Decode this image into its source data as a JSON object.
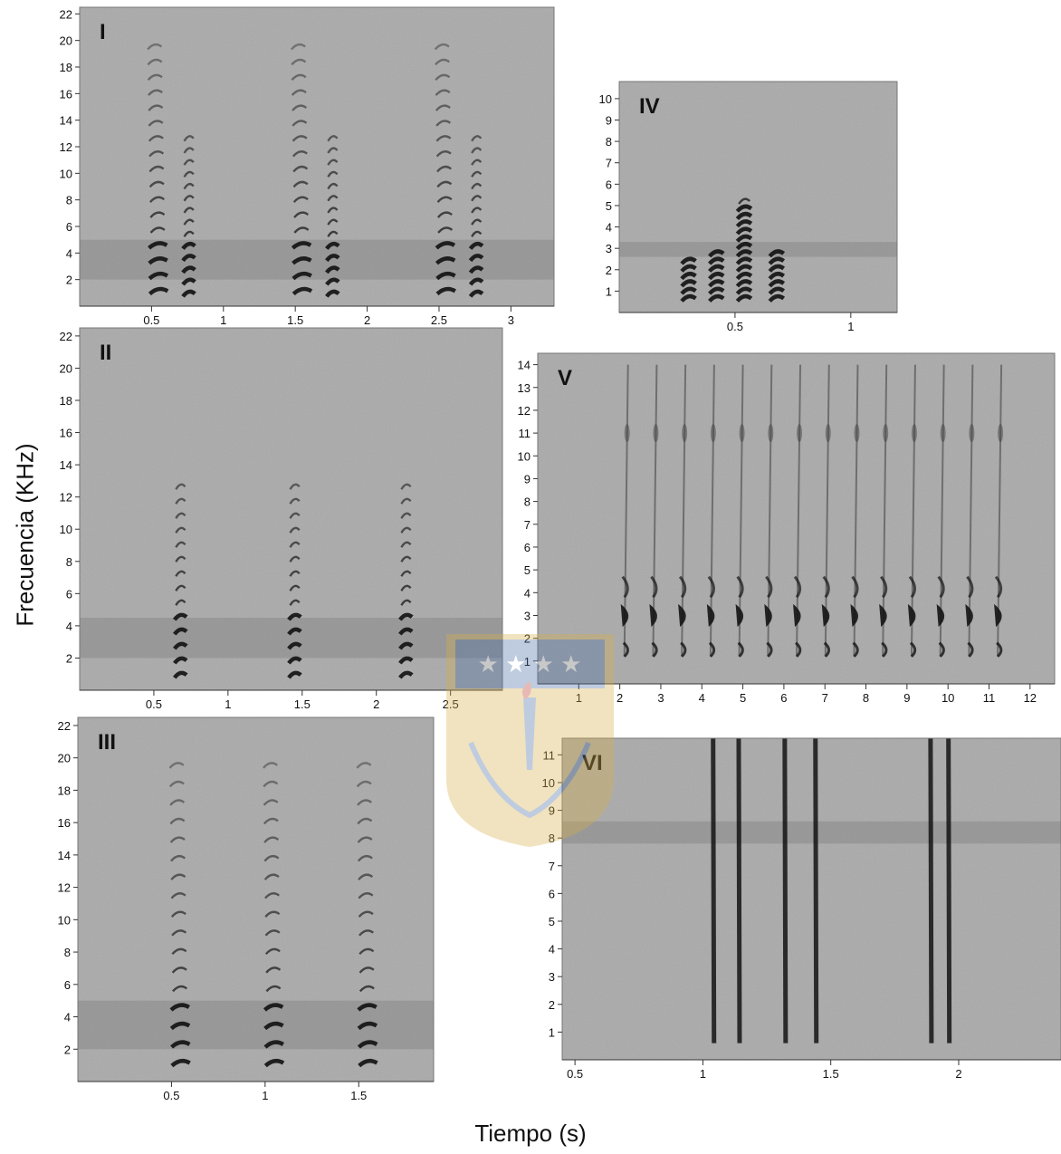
{
  "figure": {
    "ylabel": "Frecuencia (KHz)",
    "xlabel": "Tiempo (s)"
  },
  "chart_data": [
    {
      "type": "spectrogram",
      "panel_label": "I",
      "ylabel": "Frecuencia (KHz)",
      "xlabel": "Tiempo (s)",
      "yticks": [
        "2",
        "4",
        "6",
        "8",
        "10",
        "12",
        "14",
        "16",
        "18",
        "20",
        "22"
      ],
      "xticks": [
        "0.5",
        "1",
        "1.5",
        "2",
        "2.5",
        "3"
      ],
      "ylim": [
        0,
        22.5
      ],
      "xlim": [
        0,
        3.3
      ],
      "bands": [
        {
          "name": "noise_band",
          "y_range": [
            2.0,
            5.0
          ]
        }
      ],
      "calls": [
        {
          "x": 0.55,
          "shape": "descending_chevrons",
          "f_min": 1.2,
          "f_max": 20
        },
        {
          "x": 0.76,
          "shape": "descending_chevrons",
          "f_min": 1.0,
          "f_max": 13.5
        },
        {
          "x": 1.55,
          "shape": "descending_chevrons",
          "f_min": 1.2,
          "f_max": 20
        },
        {
          "x": 1.76,
          "shape": "descending_chevrons",
          "f_min": 1.0,
          "f_max": 13.5
        },
        {
          "x": 2.55,
          "shape": "descending_chevrons",
          "f_min": 1.2,
          "f_max": 20
        },
        {
          "x": 2.76,
          "shape": "descending_chevrons",
          "f_min": 1.0,
          "f_max": 13.5
        }
      ]
    },
    {
      "type": "spectrogram",
      "panel_label": "II",
      "yticks": [
        "2",
        "4",
        "6",
        "8",
        "10",
        "12",
        "14",
        "16",
        "18",
        "20",
        "22"
      ],
      "xticks": [
        "0.5",
        "1",
        "1.5",
        "2",
        "2.5"
      ],
      "ylim": [
        0,
        22.5
      ],
      "xlim": [
        0,
        2.85
      ],
      "bands": [
        {
          "name": "noise_band",
          "y_range": [
            2.0,
            4.5
          ]
        }
      ],
      "calls": [
        {
          "x": 0.68,
          "shape": "descending_chevrons",
          "f_min": 1.0,
          "f_max": 13.5
        },
        {
          "x": 1.45,
          "shape": "descending_chevrons",
          "f_min": 1.0,
          "f_max": 13.5
        },
        {
          "x": 2.2,
          "shape": "descending_chevrons",
          "f_min": 1.0,
          "f_max": 13.5
        }
      ]
    },
    {
      "type": "spectrogram",
      "panel_label": "III",
      "yticks": [
        "2",
        "4",
        "6",
        "8",
        "10",
        "12",
        "14",
        "16",
        "18",
        "20",
        "22"
      ],
      "xticks": [
        "0.5",
        "1",
        "1.5"
      ],
      "ylim": [
        0,
        22.5
      ],
      "xlim": [
        0,
        1.9
      ],
      "bands": [
        {
          "name": "noise_band",
          "y_range": [
            2.0,
            5.0
          ]
        }
      ],
      "calls": [
        {
          "x": 0.55,
          "shape": "descending_chevrons",
          "f_min": 1.2,
          "f_max": 20
        },
        {
          "x": 1.05,
          "shape": "descending_chevrons",
          "f_min": 1.2,
          "f_max": 20
        },
        {
          "x": 1.55,
          "shape": "descending_chevrons",
          "f_min": 1.2,
          "f_max": 20
        }
      ]
    },
    {
      "type": "spectrogram",
      "panel_label": "IV",
      "yticks": [
        "1",
        "2",
        "3",
        "4",
        "5",
        "6",
        "7",
        "8",
        "9",
        "10"
      ],
      "xticks": [
        "0.5",
        "1"
      ],
      "ylim": [
        0,
        10.8
      ],
      "xlim": [
        0,
        1.2
      ],
      "bands": [
        {
          "name": "noise_band",
          "y_range": [
            2.6,
            3.3
          ]
        }
      ],
      "calls": [
        {
          "x": 0.3,
          "shape": "chevron_stack",
          "f_min": 0.7,
          "f_max": 2.6
        },
        {
          "x": 0.42,
          "shape": "chevron_stack",
          "f_min": 0.7,
          "f_max": 3.0
        },
        {
          "x": 0.54,
          "shape": "chevron_stack",
          "f_min": 0.7,
          "f_max": 5.5
        },
        {
          "x": 0.68,
          "shape": "chevron_stack",
          "f_min": 0.7,
          "f_max": 3.0
        }
      ]
    },
    {
      "type": "spectrogram",
      "panel_label": "V",
      "yticks": [
        "1",
        "2",
        "3",
        "4",
        "5",
        "6",
        "7",
        "8",
        "9",
        "10",
        "11",
        "12",
        "13",
        "14"
      ],
      "xticks": [
        "1",
        "2",
        "3",
        "4",
        "5",
        "6",
        "7",
        "8",
        "9",
        "10",
        "11",
        "12"
      ],
      "ylim": [
        0,
        14.5
      ],
      "xlim": [
        0,
        12.6
      ],
      "bands": [],
      "calls": [
        {
          "x": 2.2,
          "shape": "stacked_notes",
          "f_min": 1.2,
          "f_max": 14
        },
        {
          "x": 2.9,
          "shape": "stacked_notes",
          "f_min": 1.2,
          "f_max": 14
        },
        {
          "x": 3.6,
          "shape": "stacked_notes",
          "f_min": 1.2,
          "f_max": 14
        },
        {
          "x": 4.3,
          "shape": "stacked_notes",
          "f_min": 1.2,
          "f_max": 14
        },
        {
          "x": 5.0,
          "shape": "stacked_notes",
          "f_min": 1.2,
          "f_max": 14
        },
        {
          "x": 5.7,
          "shape": "stacked_notes",
          "f_min": 1.2,
          "f_max": 14
        },
        {
          "x": 6.4,
          "shape": "stacked_notes",
          "f_min": 1.2,
          "f_max": 14
        },
        {
          "x": 7.1,
          "shape": "stacked_notes",
          "f_min": 1.2,
          "f_max": 14
        },
        {
          "x": 7.8,
          "shape": "stacked_notes",
          "f_min": 1.2,
          "f_max": 14
        },
        {
          "x": 8.5,
          "shape": "stacked_notes",
          "f_min": 1.2,
          "f_max": 14
        },
        {
          "x": 9.2,
          "shape": "stacked_notes",
          "f_min": 1.2,
          "f_max": 14
        },
        {
          "x": 9.9,
          "shape": "stacked_notes",
          "f_min": 1.2,
          "f_max": 14
        },
        {
          "x": 10.6,
          "shape": "stacked_notes",
          "f_min": 1.2,
          "f_max": 14
        },
        {
          "x": 11.3,
          "shape": "stacked_notes",
          "f_min": 1.2,
          "f_max": 14
        }
      ]
    },
    {
      "type": "spectrogram",
      "panel_label": "VI",
      "yticks": [
        "1",
        "2",
        "3",
        "4",
        "5",
        "6",
        "7",
        "8",
        "9",
        "10",
        "11"
      ],
      "xticks": [
        "0.5",
        "1",
        "1.5",
        "2"
      ],
      "ylim": [
        0,
        11.6
      ],
      "xlim": [
        0.45,
        2.4
      ],
      "bands": [
        {
          "name": "noise_band",
          "y_range": [
            7.8,
            8.6
          ]
        }
      ],
      "calls": [
        {
          "x": 1.04,
          "shape": "vertical_click",
          "f_min": 0.6,
          "f_max": 11.6
        },
        {
          "x": 1.14,
          "shape": "vertical_click",
          "f_min": 0.6,
          "f_max": 11.6
        },
        {
          "x": 1.32,
          "shape": "vertical_click",
          "f_min": 0.6,
          "f_max": 11.6
        },
        {
          "x": 1.44,
          "shape": "vertical_click",
          "f_min": 0.6,
          "f_max": 11.6
        },
        {
          "x": 1.89,
          "shape": "vertical_click",
          "f_min": 0.6,
          "f_max": 11.6
        },
        {
          "x": 1.96,
          "shape": "vertical_click",
          "f_min": 0.6,
          "f_max": 11.6
        }
      ]
    }
  ],
  "colors": {
    "background": "#a5a5a5",
    "ink": "#141414",
    "watermark_blue": "#4a6fa5",
    "watermark_gold": "#d9b04a"
  }
}
